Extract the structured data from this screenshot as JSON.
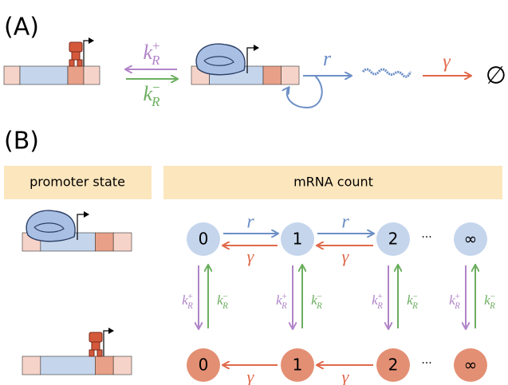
{
  "panel_a": {
    "label": "(A)",
    "rate_bind": {
      "base": "k",
      "sub": "R",
      "sup": "+"
    },
    "rate_unbind": {
      "base": "k",
      "sub": "R",
      "sup": "−"
    },
    "transcription": "r",
    "degradation": "γ",
    "empty": "∅"
  },
  "panel_b": {
    "label": "(B)",
    "header_left": "promoter state",
    "header_right": "mRNA count",
    "active_nodes": [
      "0",
      "1",
      "2",
      "∞"
    ],
    "active_ellipsis": "···",
    "active_edges": [
      {
        "forward": "r",
        "backward": "γ"
      },
      {
        "forward": "r",
        "backward": "γ"
      }
    ],
    "repressed_nodes": [
      "0",
      "1",
      "2",
      "∞"
    ],
    "repressed_ellipsis": "···",
    "repressed_edges": [
      "γ",
      "γ"
    ],
    "switches": [
      {
        "down": {
          "base": "k",
          "sub": "R",
          "sup": "+"
        },
        "up": {
          "base": "k",
          "sub": "R",
          "sup": "−"
        }
      },
      {
        "down": {
          "base": "k",
          "sub": "R",
          "sup": "+"
        },
        "up": {
          "base": "k",
          "sub": "R",
          "sup": "−"
        }
      },
      {
        "down": {
          "base": "k",
          "sub": "R",
          "sup": "+"
        },
        "up": {
          "base": "k",
          "sub": "R",
          "sup": "−"
        }
      },
      {
        "down": {
          "base": "k",
          "sub": "R",
          "sup": "+"
        },
        "up": {
          "base": "k",
          "sub": "R",
          "sup": "−"
        }
      }
    ]
  }
}
